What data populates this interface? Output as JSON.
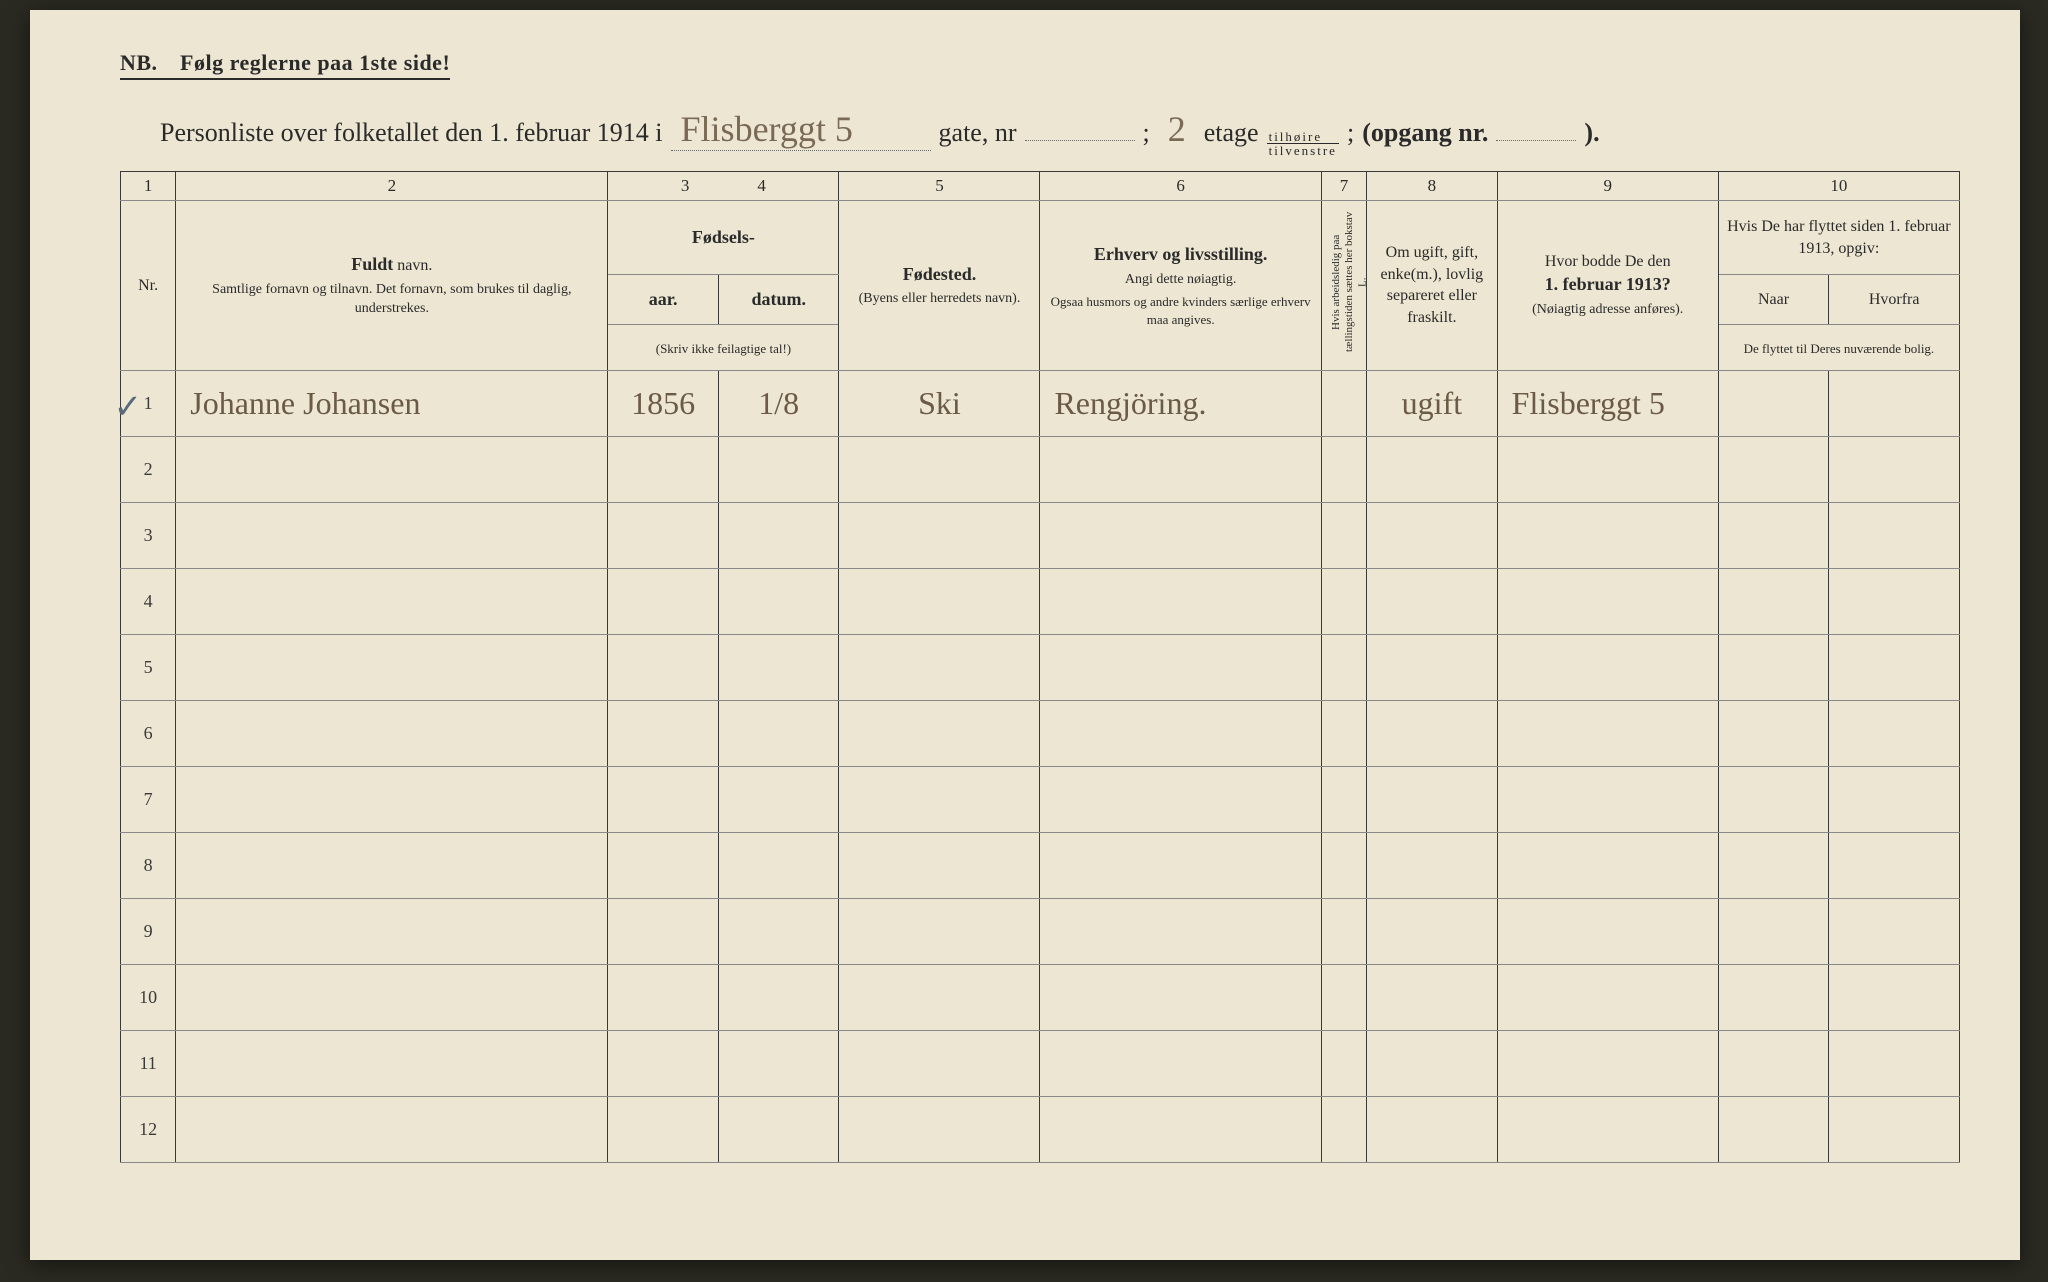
{
  "nb_line": "NB. Følg reglerne paa 1ste side!",
  "title": {
    "lead": "Personliste over folketallet den 1. februar 1914 i",
    "street_hand": "Flisberggt 5",
    "gate_label": "gate, nr",
    "gate_blank": "",
    "semicolon": ";",
    "etage_hand": "2",
    "etage_label": "etage",
    "fraction_top": "tilhøire",
    "fraction_bot": "tilvenstre",
    "semicolon2": ";",
    "opgang_label": "(opgang nr.",
    "opgang_blank": "",
    "close": ")."
  },
  "colnums": [
    "1",
    "2",
    "3",
    "4",
    "5",
    "6",
    "7",
    "8",
    "9",
    "10"
  ],
  "headers": {
    "nr": "Nr.",
    "fuldt_navn_strong": "Fuldt",
    "fuldt_navn_rest": "navn.",
    "fuldt_sub": "Samtlige fornavn og tilnavn. Det fornavn, som brukes til daglig, understrekes.",
    "fodsels": "Fødsels-",
    "aar": "aar.",
    "datum": "datum.",
    "fodsels_tiny": "(Skriv ikke feilagtige tal!)",
    "fodested_strong": "Fødested.",
    "fodested_sub": "(Byens eller herredets navn).",
    "erhverv_strong": "Erhverv og livsstilling.",
    "erhverv_sub1": "Angi dette nøiagtig.",
    "erhverv_sub2": "Ogsaa husmors og andre kvinders særlige erhverv maa angives.",
    "col7_vtext": "Hvis arbeidsledig paa tællingstiden sættes her bokstav L.",
    "col8": "Om ugift, gift, enke(m.), lovlig separeret eller fraskilt.",
    "col9_line1": "Hvor bodde De den",
    "col9_line2": "1. februar 1913?",
    "col9_sub": "(Nøiagtig adresse anføres).",
    "col10_top": "Hvis De har flyttet siden 1. februar 1913, opgiv:",
    "col10_naar": "Naar",
    "col10_hvorfra": "Hvorfra",
    "col10_sub": "De flyttet til Deres nuværende bolig."
  },
  "rows": [
    {
      "nr": "1",
      "mark": "✓",
      "name": "Johanne Johansen",
      "aar": "1856",
      "datum": "1/8",
      "fodested": "Ski",
      "erhverv": "Rengjöring.",
      "c7": "",
      "c8": "ugift",
      "c9": "Flisberggt 5",
      "c10a": "",
      "c10b": ""
    },
    {
      "nr": "2"
    },
    {
      "nr": "3"
    },
    {
      "nr": "4"
    },
    {
      "nr": "5"
    },
    {
      "nr": "6"
    },
    {
      "nr": "7"
    },
    {
      "nr": "8"
    },
    {
      "nr": "9"
    },
    {
      "nr": "10"
    },
    {
      "nr": "11"
    },
    {
      "nr": "12"
    }
  ],
  "colors": {
    "paper": "#ece6d2",
    "ink": "#2a2a2a",
    "hand": "#6b5a45",
    "pencil": "#5a6a7a",
    "rule": "#3a3a3a"
  }
}
